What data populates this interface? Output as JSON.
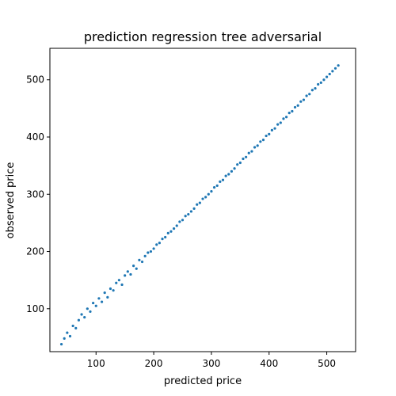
{
  "chart_data": {
    "type": "scatter",
    "title": "prediction regression tree adversarial",
    "xlabel": "predicted price",
    "ylabel": "observed price",
    "xlim": [
      20,
      550
    ],
    "ylim": [
      25,
      555
    ],
    "xticks": [
      100,
      200,
      300,
      400,
      500
    ],
    "yticks": [
      100,
      200,
      300,
      400,
      500
    ],
    "grid": false,
    "series": [
      {
        "color": "#1f77b4",
        "points": [
          [
            40,
            38
          ],
          [
            45,
            48
          ],
          [
            50,
            58
          ],
          [
            55,
            52
          ],
          [
            60,
            70
          ],
          [
            65,
            66
          ],
          [
            70,
            80
          ],
          [
            75,
            90
          ],
          [
            80,
            85
          ],
          [
            85,
            100
          ],
          [
            90,
            95
          ],
          [
            95,
            110
          ],
          [
            100,
            105
          ],
          [
            105,
            118
          ],
          [
            110,
            112
          ],
          [
            115,
            128
          ],
          [
            120,
            120
          ],
          [
            125,
            135
          ],
          [
            130,
            132
          ],
          [
            135,
            145
          ],
          [
            140,
            150
          ],
          [
            145,
            142
          ],
          [
            150,
            158
          ],
          [
            155,
            165
          ],
          [
            160,
            160
          ],
          [
            165,
            175
          ],
          [
            170,
            170
          ],
          [
            175,
            185
          ],
          [
            180,
            182
          ],
          [
            185,
            192
          ],
          [
            190,
            198
          ],
          [
            195,
            200
          ],
          [
            200,
            205
          ],
          [
            205,
            212
          ],
          [
            210,
            215
          ],
          [
            215,
            222
          ],
          [
            220,
            225
          ],
          [
            225,
            232
          ],
          [
            230,
            235
          ],
          [
            235,
            240
          ],
          [
            240,
            245
          ],
          [
            245,
            252
          ],
          [
            250,
            255
          ],
          [
            255,
            262
          ],
          [
            260,
            265
          ],
          [
            265,
            270
          ],
          [
            270,
            275
          ],
          [
            275,
            282
          ],
          [
            280,
            285
          ],
          [
            285,
            292
          ],
          [
            290,
            295
          ],
          [
            295,
            300
          ],
          [
            300,
            305
          ],
          [
            305,
            312
          ],
          [
            310,
            315
          ],
          [
            315,
            322
          ],
          [
            320,
            325
          ],
          [
            325,
            332
          ],
          [
            330,
            335
          ],
          [
            335,
            340
          ],
          [
            340,
            345
          ],
          [
            345,
            352
          ],
          [
            350,
            355
          ],
          [
            355,
            362
          ],
          [
            360,
            365
          ],
          [
            365,
            372
          ],
          [
            370,
            375
          ],
          [
            375,
            382
          ],
          [
            380,
            385
          ],
          [
            385,
            392
          ],
          [
            390,
            395
          ],
          [
            395,
            402
          ],
          [
            400,
            405
          ],
          [
            405,
            412
          ],
          [
            410,
            415
          ],
          [
            415,
            422
          ],
          [
            420,
            425
          ],
          [
            425,
            432
          ],
          [
            430,
            435
          ],
          [
            435,
            442
          ],
          [
            440,
            445
          ],
          [
            445,
            452
          ],
          [
            450,
            455
          ],
          [
            455,
            462
          ],
          [
            460,
            465
          ],
          [
            465,
            472
          ],
          [
            470,
            475
          ],
          [
            475,
            482
          ],
          [
            480,
            485
          ],
          [
            485,
            492
          ],
          [
            490,
            495
          ],
          [
            495,
            500
          ],
          [
            500,
            505
          ],
          [
            505,
            510
          ],
          [
            510,
            515
          ],
          [
            515,
            520
          ],
          [
            520,
            525
          ]
        ]
      }
    ]
  }
}
